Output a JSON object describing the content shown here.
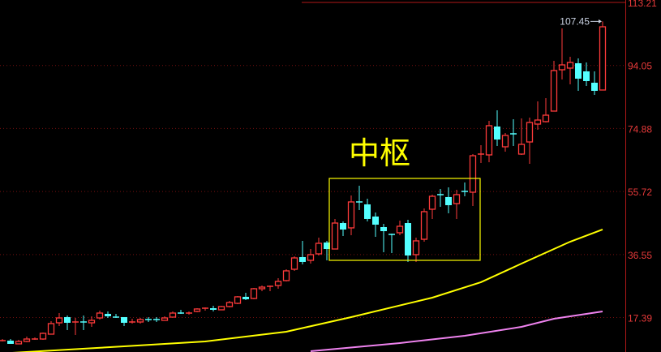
{
  "chart_data": {
    "type": "candlestick",
    "title": "",
    "y_ticks": [
      "113.21",
      "94.05",
      "74.88",
      "55.72",
      "36.55",
      "17.39"
    ],
    "ylim": [
      7.0,
      113.21
    ],
    "grid": "dotted horizontal at tick levels",
    "colors": {
      "up": "#ff3b3b",
      "down": "#54ffff",
      "ma_short": "#ffff00",
      "ma_long": "#ee82ee",
      "axis": "#e83a3a",
      "grid": "#7a1010",
      "box": "#ffff00"
    },
    "candles": [
      [
        10.13,
        10.87,
        10.13,
        10.38
      ],
      [
        10.38,
        10.87,
        9.39,
        9.39
      ],
      [
        9.39,
        10.63,
        9.39,
        10.13
      ],
      [
        10.13,
        11.61,
        9.88,
        10.87
      ],
      [
        10.75,
        11.37,
        10.63,
        10.87
      ],
      [
        10.87,
        12.84,
        10.63,
        12.6
      ],
      [
        12.35,
        16.3,
        12.35,
        15.56
      ],
      [
        15.8,
        18.76,
        14.82,
        17.28
      ],
      [
        17.53,
        18.02,
        13.58,
        15.8
      ],
      [
        15.93,
        17.28,
        12.1,
        16.05
      ],
      [
        16.05,
        18.02,
        13.58,
        15.93
      ],
      [
        15.8,
        17.78,
        14.57,
        16.54
      ],
      [
        17.28,
        19.5,
        16.79,
        18.76
      ],
      [
        18.52,
        19.26,
        17.28,
        17.78
      ],
      [
        17.53,
        18.52,
        17.28,
        17.41
      ],
      [
        17.53,
        17.53,
        14.82,
        15.8
      ],
      [
        15.93,
        17.04,
        15.56,
        16.05
      ],
      [
        16.05,
        17.28,
        15.56,
        16.79
      ],
      [
        16.79,
        17.53,
        16.05,
        16.67
      ],
      [
        16.79,
        17.53,
        16.05,
        16.67
      ],
      [
        16.54,
        17.78,
        16.54,
        17.28
      ],
      [
        17.53,
        19.26,
        17.53,
        18.76
      ],
      [
        18.76,
        19.75,
        18.52,
        18.64
      ],
      [
        18.64,
        19.26,
        18.27,
        18.76
      ],
      [
        19.26,
        20.24,
        19.01,
        20.0
      ],
      [
        20.12,
        20.49,
        19.5,
        20.24
      ],
      [
        20.24,
        20.98,
        19.26,
        19.75
      ],
      [
        19.75,
        20.98,
        19.75,
        20.74
      ],
      [
        20.74,
        22.46,
        20.49,
        21.97
      ],
      [
        21.72,
        23.94,
        21.48,
        23.7
      ],
      [
        23.7,
        24.93,
        22.71,
        22.96
      ],
      [
        23.2,
        26.41,
        22.96,
        26.16
      ],
      [
        26.16,
        27.15,
        25.42,
        26.65
      ],
      [
        26.78,
        27.15,
        25.42,
        26.9
      ],
      [
        27.15,
        29.37,
        26.16,
        28.38
      ],
      [
        28.63,
        32.08,
        28.38,
        31.59
      ],
      [
        32.08,
        36.03,
        31.59,
        35.53
      ],
      [
        35.78,
        40.71,
        33.56,
        34.3
      ],
      [
        34.79,
        38.24,
        33.8,
        36.52
      ],
      [
        36.76,
        41.7,
        36.27,
        39.97
      ],
      [
        40.22,
        40.71,
        34.79,
        38.24
      ],
      [
        38.24,
        47.37,
        38.24,
        46.13
      ],
      [
        46.13,
        46.63,
        42.19,
        44.16
      ],
      [
        44.66,
        54.52,
        42.44,
        52.55
      ],
      [
        52.55,
        57.48,
        50.08,
        52.42
      ],
      [
        51.81,
        53.53,
        46.63,
        47.37
      ],
      [
        48.11,
        49.34,
        41.94,
        45.64
      ],
      [
        44.9,
        45.89,
        37.26,
        43.67
      ],
      [
        42.68,
        42.93,
        37.01,
        42.56
      ],
      [
        43.18,
        46.87,
        42.44,
        45.15
      ],
      [
        46.13,
        47.12,
        34.3,
        36.27
      ],
      [
        36.52,
        41.7,
        34.3,
        40.71
      ],
      [
        41.2,
        50.57,
        40.46,
        49.59
      ],
      [
        50.33,
        54.77,
        47.37,
        54.27
      ],
      [
        54.77,
        56.49,
        51.07,
        54.64
      ],
      [
        54.03,
        56.99,
        49.09,
        51.56
      ],
      [
        52.05,
        56.25,
        47.37,
        54.77
      ],
      [
        55.75,
        58.46,
        54.27,
        55.63
      ],
      [
        55.51,
        67.1,
        51.31,
        66.6
      ],
      [
        66.97,
        69.81,
        64.38,
        67.1
      ],
      [
        66.85,
        77.21,
        64.63,
        75.73
      ],
      [
        75.48,
        80.41,
        69.56,
        71.53
      ],
      [
        69.32,
        73.51,
        67.84,
        72.77
      ],
      [
        73.26,
        77.7,
        69.56,
        73.14
      ],
      [
        67.1,
        77.95,
        66.85,
        70.06
      ],
      [
        70.79,
        78.19,
        64.14,
        76.71
      ],
      [
        76.22,
        83.12,
        74.49,
        77.45
      ],
      [
        76.96,
        84.11,
        76.71,
        78.93
      ],
      [
        80.17,
        95.45,
        80.17,
        92.5
      ],
      [
        92.74,
        105.32,
        89.78,
        94.22
      ],
      [
        93.24,
        96.69,
        88.3,
        94.96
      ],
      [
        94.72,
        96.19,
        86.33,
        90.03
      ],
      [
        92.25,
        94.96,
        87.81,
        89.29
      ],
      [
        88.8,
        92.25,
        85.1,
        86.33
      ],
      [
        86.58,
        107.45,
        86.58,
        105.81
      ]
    ],
    "candle_fields": [
      "open",
      "high",
      "low",
      "close"
    ],
    "ma_short": {
      "index": [
        0,
        15,
        25,
        35,
        43,
        53,
        59,
        64,
        70,
        74
      ],
      "values": [
        6.5,
        8.65,
        10.13,
        13.09,
        17.53,
        23.45,
        28.14,
        33.8,
        40.46,
        44.16
      ]
    },
    "ma_long": {
      "index": [
        38,
        49,
        57,
        64,
        68,
        74
      ],
      "values": [
        7.17,
        9.64,
        11.86,
        14.57,
        17.04,
        19.26
      ]
    },
    "highest_label": "107.45",
    "pivot_zone": {
      "label": "中枢",
      "start_index": 40.3,
      "end_index": 58.9,
      "upper": 59.7,
      "lower": 34.79
    }
  }
}
